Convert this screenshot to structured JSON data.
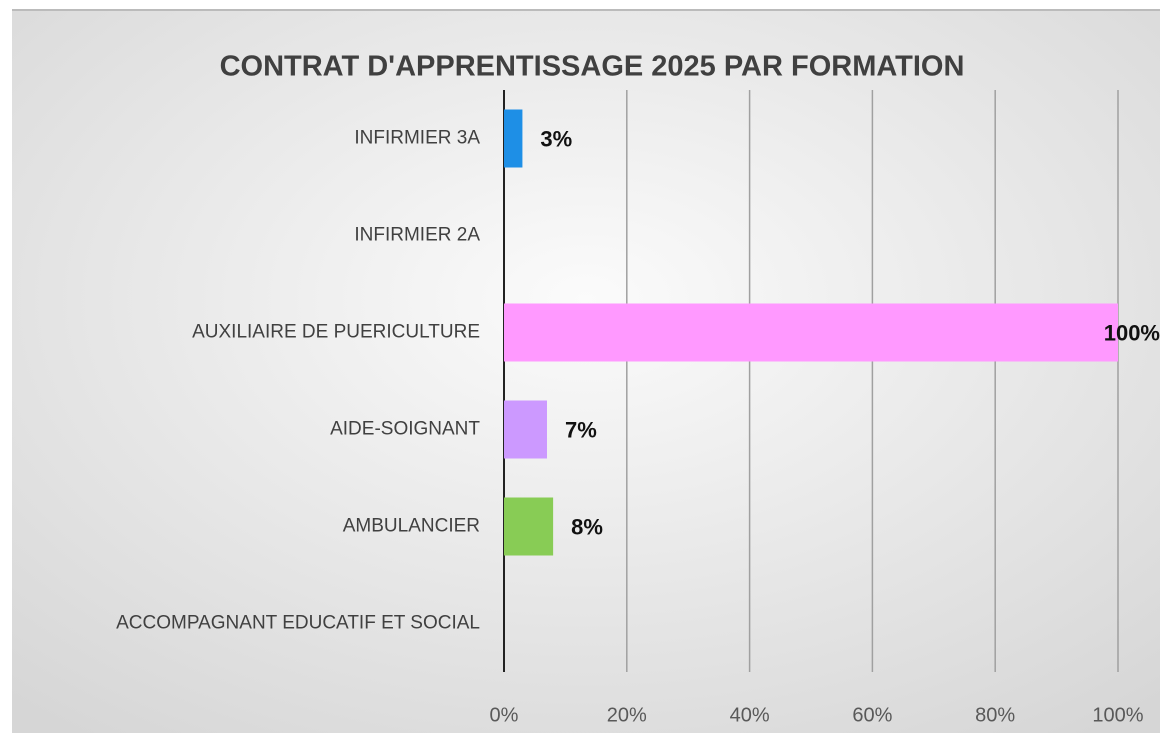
{
  "chart_data": {
    "type": "bar",
    "orientation": "horizontal",
    "title": "CONTRAT D'APPRENTISSAGE 2025 PAR FORMATION",
    "categories": [
      "INFIRMIER 3A",
      "INFIRMIER 2A",
      "AUXILIAIRE DE PUERICULTURE",
      "AIDE-SOIGNANT",
      "AMBULANCIER",
      "ACCOMPAGNANT EDUCATIF ET SOCIAL"
    ],
    "values": [
      3,
      null,
      100,
      7,
      8,
      null
    ],
    "value_labels": [
      "3%",
      null,
      "100%",
      "7%",
      "8%",
      null
    ],
    "colors": [
      "#1e8fe6",
      null,
      "#ff99ff",
      "#cc99ff",
      "#88cc55",
      null
    ],
    "xlim": [
      0,
      100
    ],
    "xticks": [
      {
        "value": 0,
        "label": "0%"
      },
      {
        "value": 20,
        "label": "20%"
      },
      {
        "value": 40,
        "label": "40%"
      },
      {
        "value": 60,
        "label": "60%"
      },
      {
        "value": 80,
        "label": "80%"
      },
      {
        "value": 100,
        "label": "100%"
      }
    ],
    "grid": true
  }
}
